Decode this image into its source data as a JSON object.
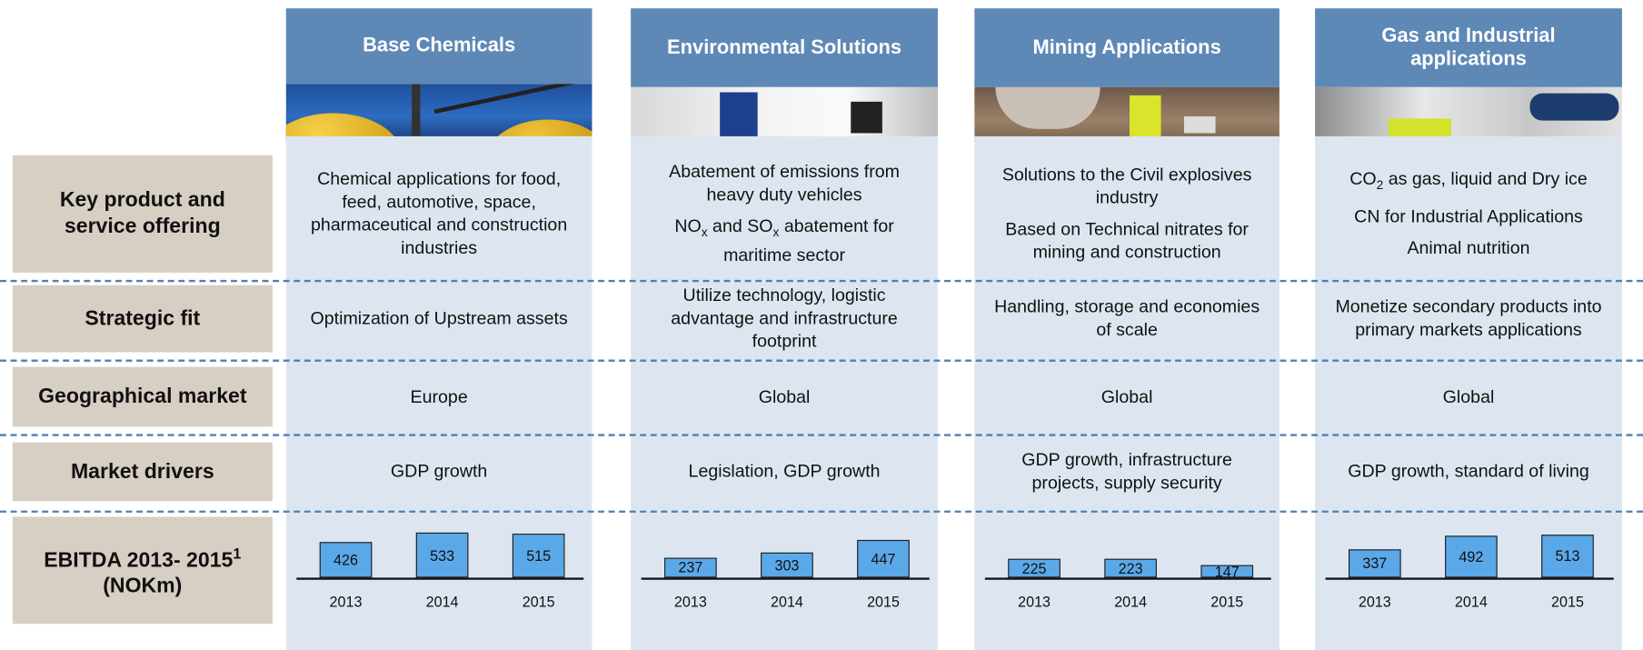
{
  "row_labels": [
    [
      "Key product and service offering"
    ],
    [
      "Strategic fit"
    ],
    [
      "Geographical market"
    ],
    [
      "Market drivers"
    ],
    [
      "EBITDA 2013- 2015",
      {
        "text": "1",
        "superscript": true
      },
      " (NOKm)"
    ]
  ],
  "columns": [
    {
      "title": "Base Chemicals",
      "key_offering": [
        [
          "Chemical applications for food, feed, automotive, space, pharmaceutical and construction industries"
        ]
      ],
      "strategic_fit": "Optimization of Upstream assets",
      "geographical_market": "Europe",
      "market_drivers": "GDP growth",
      "ebitda": {
        "type": "bar",
        "categories": [
          "2013",
          "2014",
          "2015"
        ],
        "values": [
          426,
          533,
          515
        ],
        "color": "#5ba8e8"
      }
    },
    {
      "title": "Environmental Solutions",
      "key_offering": [
        [
          "Abatement of emissions from heavy duty vehicles"
        ],
        [
          "NO",
          {
            "text": "x",
            "subscript": true
          },
          " and SO",
          {
            "text": "x",
            "subscript": true
          },
          " abatement for maritime sector"
        ]
      ],
      "strategic_fit": "Utilize technology, logistic advantage and infrastructure footprint",
      "geographical_market": "Global",
      "market_drivers": "Legislation, GDP growth",
      "ebitda": {
        "type": "bar",
        "categories": [
          "2013",
          "2014",
          "2015"
        ],
        "values": [
          237,
          303,
          447
        ],
        "color": "#5ba8e8"
      }
    },
    {
      "title": "Mining Applications",
      "key_offering": [
        [
          "Solutions to the Civil explosives industry"
        ],
        [
          "Based on Technical nitrates for mining and construction"
        ]
      ],
      "strategic_fit": "Handling, storage and economies of scale",
      "geographical_market": "Global",
      "market_drivers": "GDP growth, infrastructure projects, supply security",
      "ebitda": {
        "type": "bar",
        "categories": [
          "2013",
          "2014",
          "2015"
        ],
        "values": [
          225,
          223,
          147
        ],
        "color": "#5ba8e8"
      }
    },
    {
      "title": "Gas and Industrial applications",
      "key_offering": [
        [
          "CO",
          {
            "text": "2",
            "subscript": true
          },
          " as gas, liquid and Dry ice"
        ],
        [
          "CN for Industrial Applications"
        ],
        [
          "Animal nutrition"
        ]
      ],
      "strategic_fit": "Monetize secondary products into primary markets applications",
      "geographical_market": "Global",
      "market_drivers": "GDP growth, standard of living",
      "ebitda": {
        "type": "bar",
        "categories": [
          "2013",
          "2014",
          "2015"
        ],
        "values": [
          337,
          492,
          513
        ],
        "color": "#5ba8e8"
      }
    }
  ]
}
